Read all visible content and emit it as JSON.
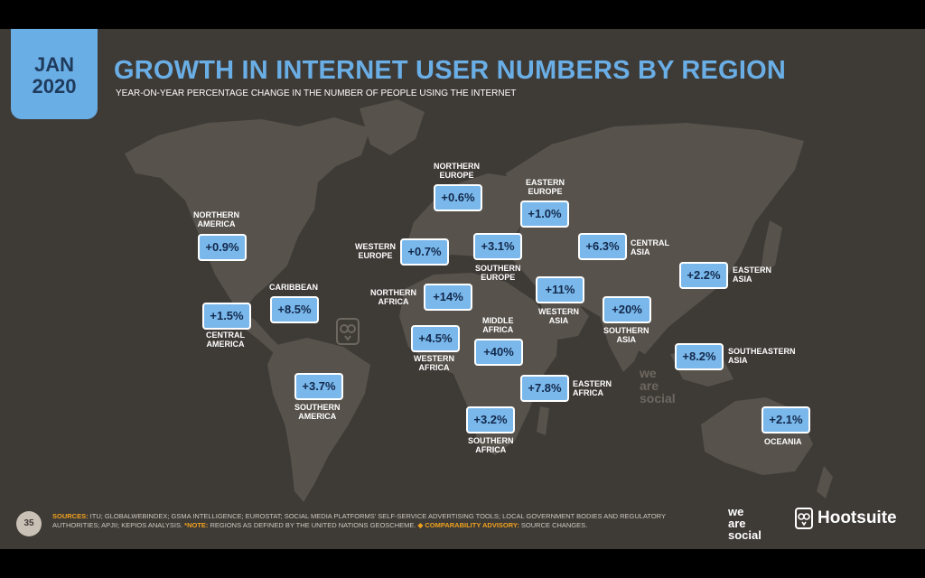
{
  "date": {
    "month": "JAN",
    "year": "2020"
  },
  "title": "GROWTH IN INTERNET USER NUMBERS BY REGION",
  "subtitle": "YEAR-ON-YEAR PERCENTAGE CHANGE IN THE NUMBER OF PEOPLE USING THE INTERNET",
  "colors": {
    "accent": "#6aaee6",
    "badge": "#7ab8ec",
    "background": "#3e3a36",
    "land": "#57524c",
    "sources_highlight": "#f0a21e"
  },
  "regions": {
    "northern_america": {
      "l1": "NORTHERN",
      "l2": "AMERICA",
      "value": "+0.9%"
    },
    "central_america": {
      "l1": "CENTRAL",
      "l2": "AMERICA",
      "value": "+1.5%"
    },
    "caribbean": {
      "l1": "CARIBBEAN",
      "value": "+8.5%"
    },
    "southern_america": {
      "l1": "SOUTHERN",
      "l2": "AMERICA",
      "value": "+3.7%"
    },
    "northern_europe": {
      "l1": "NORTHERN",
      "l2": "EUROPE",
      "value": "+0.6%"
    },
    "western_europe": {
      "l1": "WESTERN",
      "l2": "EUROPE",
      "value": "+0.7%"
    },
    "eastern_europe": {
      "l1": "EASTERN",
      "l2": "EUROPE",
      "value": "+1.0%"
    },
    "southern_europe": {
      "l1": "SOUTHERN",
      "l2": "EUROPE",
      "value": "+3.1%"
    },
    "northern_africa": {
      "l1": "NORTHERN",
      "l2": "AFRICA",
      "value": "+14%"
    },
    "western_africa": {
      "l1": "WESTERN",
      "l2": "AFRICA",
      "value": "+4.5%"
    },
    "middle_africa": {
      "l1": "MIDDLE",
      "l2": "AFRICA",
      "value": "+40%"
    },
    "eastern_africa": {
      "l1": "EASTERN",
      "l2": "AFRICA",
      "value": "+7.8%"
    },
    "southern_africa": {
      "l1": "SOUTHERN",
      "l2": "AFRICA",
      "value": "+3.2%"
    },
    "western_asia": {
      "l1": "WESTERN",
      "l2": "ASIA",
      "value": "+11%"
    },
    "central_asia": {
      "l1": "CENTRAL",
      "l2": "ASIA",
      "value": "+6.3%"
    },
    "southern_asia": {
      "l1": "SOUTHERN",
      "l2": "ASIA",
      "value": "+20%"
    },
    "eastern_asia": {
      "l1": "EASTERN",
      "l2": "ASIA",
      "value": "+2.2%"
    },
    "southeastern_asia": {
      "l1": "SOUTHEASTERN",
      "l2": "ASIA",
      "value": "+8.2%"
    },
    "oceania": {
      "l1": "OCEANIA",
      "value": "+2.1%"
    }
  },
  "footer": {
    "page": "35",
    "sources_label": "SOURCES:",
    "sources_text": " ITU; GLOBALWEBINDEX; GSMA INTELLIGENCE; EUROSTAT; SOCIAL MEDIA PLATFORMS' SELF-SERVICE ADVERTISING TOOLS; LOCAL GOVERNMENT BODIES AND REGULATORY AUTHORITIES; APJII; KEPIOS ANALYSIS. ",
    "note_label": "*NOTE:",
    "note_text": " REGIONS AS DEFINED BY THE UNITED NATIONS GEOSCHEME. ",
    "advisory_label": "◆ COMPARABILITY ADVISORY:",
    "advisory_text": " SOURCE CHANGES.",
    "brand_we": "we",
    "brand_are": "are",
    "brand_social": "social",
    "brand_hootsuite": "Hootsuite"
  }
}
